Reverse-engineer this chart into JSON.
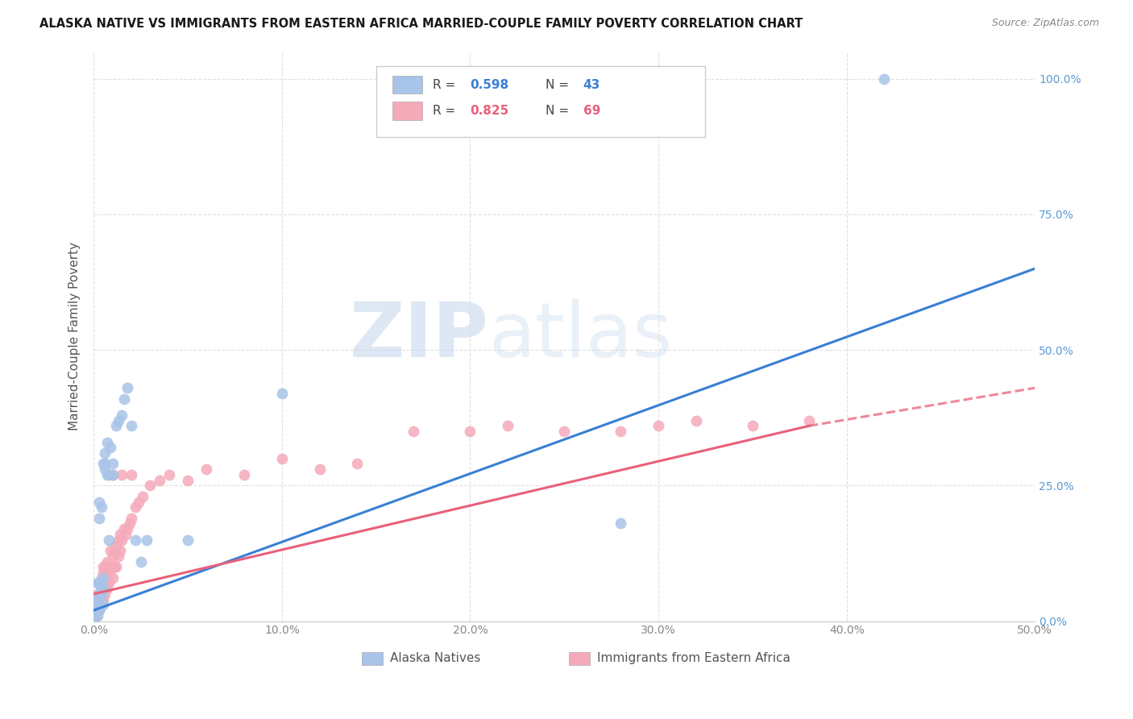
{
  "title": "ALASKA NATIVE VS IMMIGRANTS FROM EASTERN AFRICA MARRIED-COUPLE FAMILY POVERTY CORRELATION CHART",
  "source": "Source: ZipAtlas.com",
  "ylabel": "Married-Couple Family Poverty",
  "xlim": [
    0,
    0.5
  ],
  "ylim": [
    0,
    1.05
  ],
  "yticks": [
    0.0,
    0.25,
    0.5,
    0.75,
    1.0
  ],
  "ytick_labels": [
    "0.0%",
    "25.0%",
    "50.0%",
    "75.0%",
    "100.0%"
  ],
  "xticks": [
    0.0,
    0.1,
    0.2,
    0.3,
    0.4,
    0.5
  ],
  "xtick_labels": [
    "0.0%",
    "10.0%",
    "20.0%",
    "30.0%",
    "40.0%",
    "50.0%"
  ],
  "alaska_color": "#a8c4e8",
  "eastern_africa_color": "#f5aaba",
  "alaska_line_color": "#3a7fd5",
  "eastern_africa_line_color": "#e8607a",
  "background_color": "#ffffff",
  "grid_color": "#e0e0e0",
  "watermark_zip": "ZIP",
  "watermark_atlas": "atlas",
  "alaska_x": [
    0.001,
    0.001,
    0.001,
    0.002,
    0.002,
    0.002,
    0.002,
    0.003,
    0.003,
    0.003,
    0.003,
    0.003,
    0.004,
    0.004,
    0.004,
    0.004,
    0.005,
    0.005,
    0.005,
    0.005,
    0.006,
    0.006,
    0.006,
    0.007,
    0.007,
    0.008,
    0.008,
    0.009,
    0.01,
    0.01,
    0.012,
    0.013,
    0.015,
    0.016,
    0.018,
    0.02,
    0.022,
    0.025,
    0.028,
    0.05,
    0.1,
    0.28,
    0.42
  ],
  "alaska_y": [
    0.01,
    0.02,
    0.03,
    0.01,
    0.02,
    0.04,
    0.07,
    0.02,
    0.05,
    0.07,
    0.19,
    0.22,
    0.05,
    0.06,
    0.07,
    0.21,
    0.03,
    0.06,
    0.08,
    0.29,
    0.28,
    0.29,
    0.31,
    0.27,
    0.33,
    0.15,
    0.27,
    0.32,
    0.27,
    0.29,
    0.36,
    0.37,
    0.38,
    0.41,
    0.43,
    0.36,
    0.15,
    0.11,
    0.15,
    0.15,
    0.42,
    0.18,
    1.0
  ],
  "eastern_africa_x": [
    0.001,
    0.001,
    0.001,
    0.002,
    0.002,
    0.002,
    0.002,
    0.003,
    0.003,
    0.003,
    0.003,
    0.004,
    0.004,
    0.004,
    0.004,
    0.005,
    0.005,
    0.005,
    0.005,
    0.006,
    0.006,
    0.006,
    0.007,
    0.007,
    0.007,
    0.008,
    0.008,
    0.009,
    0.009,
    0.01,
    0.01,
    0.011,
    0.011,
    0.012,
    0.012,
    0.013,
    0.013,
    0.014,
    0.014,
    0.015,
    0.016,
    0.017,
    0.018,
    0.019,
    0.02,
    0.022,
    0.024,
    0.026,
    0.03,
    0.035,
    0.04,
    0.05,
    0.06,
    0.08,
    0.1,
    0.12,
    0.14,
    0.17,
    0.2,
    0.22,
    0.25,
    0.28,
    0.3,
    0.32,
    0.35,
    0.38,
    0.01,
    0.015,
    0.02
  ],
  "eastern_africa_y": [
    0.01,
    0.02,
    0.03,
    0.02,
    0.03,
    0.04,
    0.05,
    0.02,
    0.03,
    0.05,
    0.07,
    0.04,
    0.06,
    0.07,
    0.08,
    0.04,
    0.07,
    0.09,
    0.1,
    0.05,
    0.08,
    0.1,
    0.06,
    0.08,
    0.11,
    0.07,
    0.09,
    0.1,
    0.13,
    0.08,
    0.12,
    0.1,
    0.13,
    0.1,
    0.14,
    0.12,
    0.15,
    0.13,
    0.16,
    0.15,
    0.17,
    0.16,
    0.17,
    0.18,
    0.19,
    0.21,
    0.22,
    0.23,
    0.25,
    0.26,
    0.27,
    0.26,
    0.28,
    0.27,
    0.3,
    0.28,
    0.29,
    0.35,
    0.35,
    0.36,
    0.35,
    0.35,
    0.36,
    0.37,
    0.36,
    0.37,
    0.27,
    0.27,
    0.27
  ],
  "alaska_line_x0": 0.0,
  "alaska_line_y0": 0.02,
  "alaska_line_x1": 0.5,
  "alaska_line_y1": 0.65,
  "ea_line_x0": 0.0,
  "ea_line_y0": 0.05,
  "ea_line_x1": 0.38,
  "ea_line_y1": 0.36,
  "ea_line_dash_x0": 0.38,
  "ea_line_dash_y0": 0.36,
  "ea_line_dash_x1": 0.5,
  "ea_line_dash_y1": 0.43
}
